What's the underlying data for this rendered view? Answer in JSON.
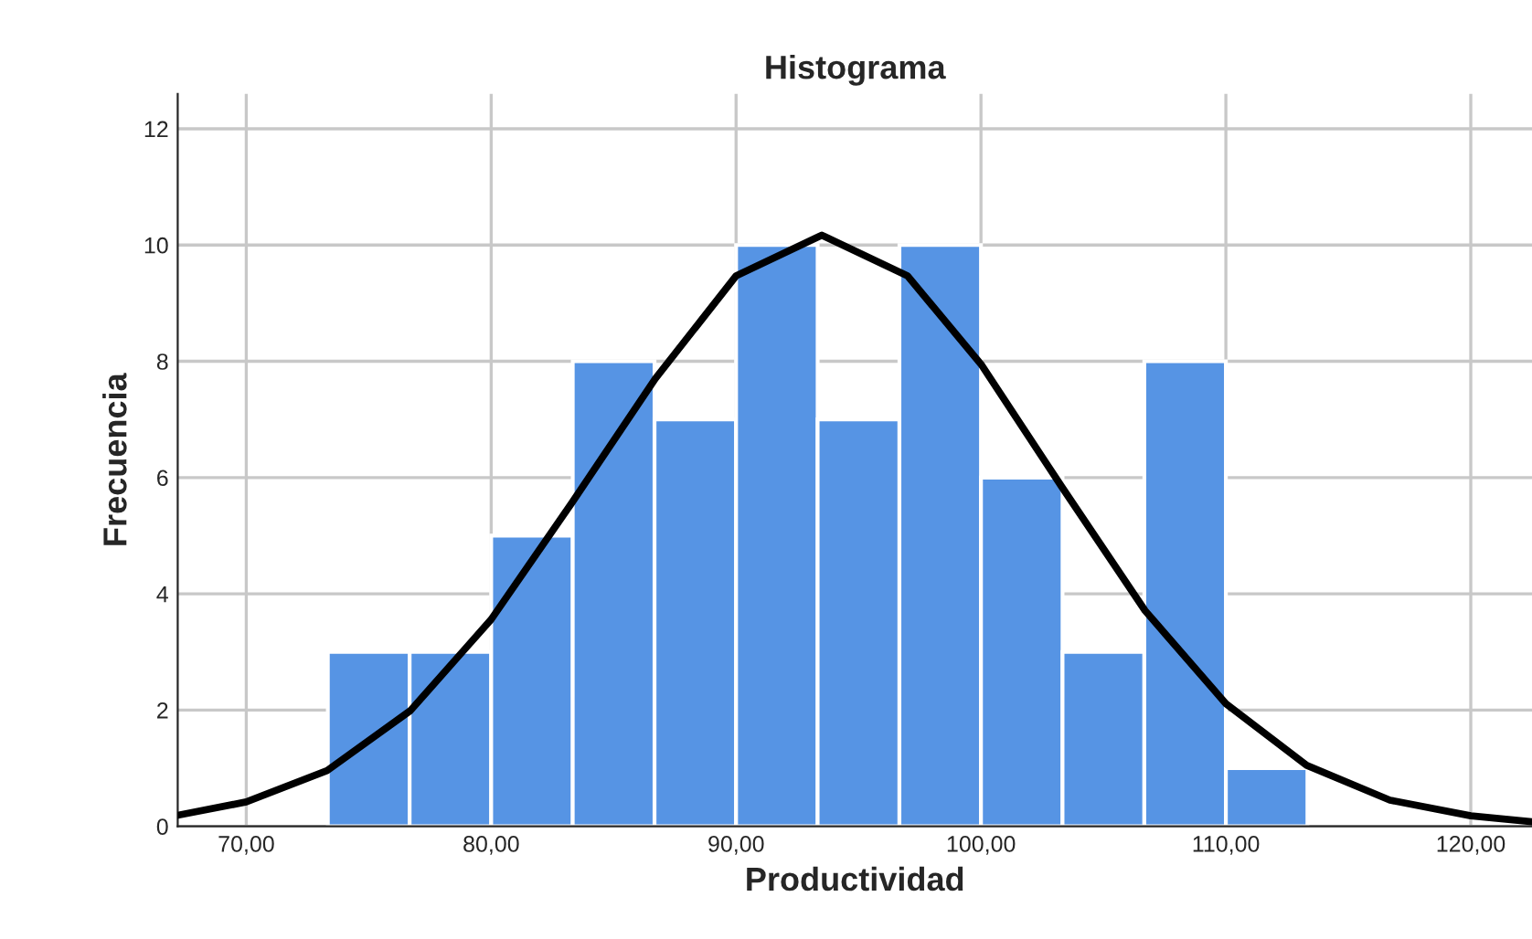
{
  "chart_data": {
    "type": "histogram",
    "title": "Histograma",
    "xlabel": "Productividad",
    "ylabel": "Frecuencia",
    "bins": [
      73.33,
      76.67,
      80,
      83.33,
      86.67,
      90,
      93.33,
      96.67,
      100,
      103.33,
      106.67,
      110,
      113.33
    ],
    "values": [
      3,
      3,
      5,
      8,
      7,
      10,
      7,
      10,
      6,
      3,
      8,
      1
    ],
    "color": "#5694e4",
    "series": [
      {
        "type": "line",
        "color": "#000000",
        "x": [
          67.2,
          70,
          73.3,
          76.7,
          80,
          83.3,
          86.7,
          90,
          93.5,
          97,
          100,
          103.3,
          106.7,
          110,
          113.3,
          116.7,
          120,
          122.5
        ],
        "values": [
          0.19,
          0.42,
          0.96,
          1.99,
          3.56,
          5.57,
          7.7,
          9.47,
          10.17,
          9.47,
          7.95,
          5.84,
          3.71,
          2.11,
          1.05,
          0.45,
          0.18,
          0.08
        ]
      }
    ],
    "xlim": [
      67.2,
      122.5
    ],
    "ylim": [
      0,
      12.6
    ],
    "xticks": [
      {
        "value": 70,
        "label": "70,00"
      },
      {
        "value": 80,
        "label": "80,00"
      },
      {
        "value": 90,
        "label": "90,00"
      },
      {
        "value": 100,
        "label": "100,00"
      },
      {
        "value": 110,
        "label": "110,00"
      },
      {
        "value": 120,
        "label": "120,00"
      }
    ],
    "yticks": [
      0,
      2,
      4,
      6,
      8,
      10,
      12
    ],
    "grid": true
  }
}
